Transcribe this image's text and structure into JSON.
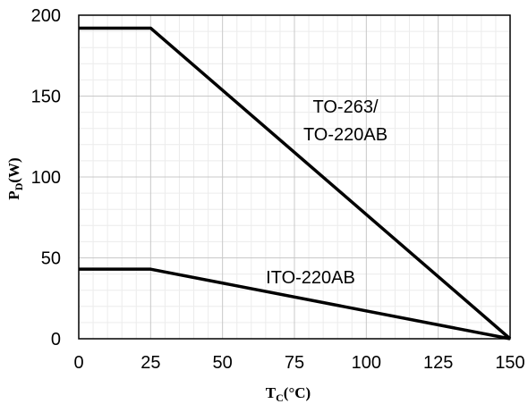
{
  "chart_data": {
    "type": "line",
    "xlabel": {
      "main": "T",
      "sub": "C",
      "rest": "(°C)"
    },
    "ylabel": {
      "main": "P",
      "sub": "D",
      "rest": "(W)"
    },
    "xlim": [
      0,
      150
    ],
    "ylim": [
      0,
      200
    ],
    "xticks": [
      0,
      25,
      50,
      75,
      100,
      125,
      150
    ],
    "yticks": [
      0,
      50,
      100,
      150,
      200
    ],
    "grid": true,
    "minor_grid": true,
    "series": [
      {
        "name_lines": [
          "TO-263/",
          "TO-220AB"
        ],
        "x": [
          0,
          25,
          150
        ],
        "y": [
          192,
          192,
          0
        ],
        "color": "#000000"
      },
      {
        "name_lines": [
          "ITO-220AB"
        ],
        "x": [
          0,
          25,
          150
        ],
        "y": [
          43,
          43,
          0
        ],
        "color": "#000000"
      }
    ]
  }
}
